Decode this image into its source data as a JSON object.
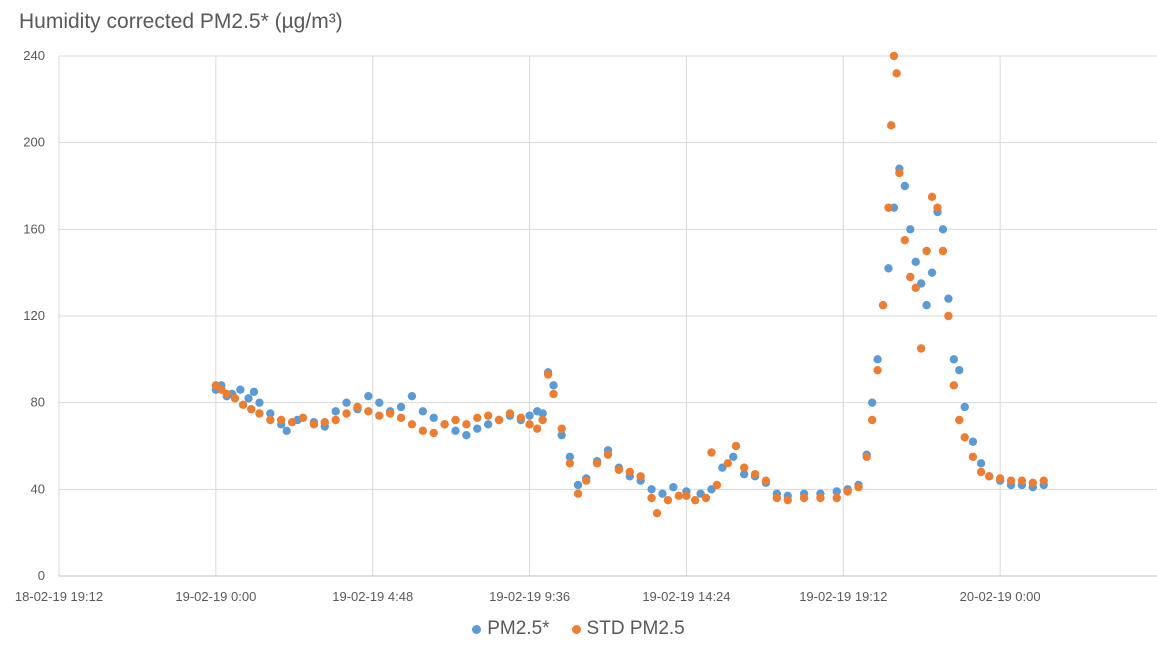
{
  "chart_data": {
    "type": "scatter",
    "title": "Humidity corrected PM2.5* (µg/m³)",
    "xlabel": "",
    "ylabel": "",
    "x_axis": {
      "type": "datetime",
      "min": "2019-02-18T19:12",
      "max": "2019-02-20T04:48",
      "ticks": [
        "2019-02-18T19:12",
        "2019-02-19T00:00",
        "2019-02-19T04:48",
        "2019-02-19T09:36",
        "2019-02-19T14:24",
        "2019-02-19T19:12",
        "2019-02-20T00:00"
      ],
      "tick_labels": [
        "18-02-19 19:12",
        "19-02-19 0:00",
        "19-02-19 4:48",
        "19-02-19 9:36",
        "19-02-19 14:24",
        "19-02-19 19:12",
        "20-02-19 0:00"
      ]
    },
    "ylim": [
      0,
      240
    ],
    "y_ticks": [
      0,
      40,
      80,
      120,
      160,
      200,
      240
    ],
    "grid": true,
    "legend_position": "bottom",
    "series": [
      {
        "name": "PM2.5*",
        "color": "#5b9bd5",
        "points": [
          [
            "2019-02-19T00:00",
            86
          ],
          [
            "2019-02-19T00:10",
            88
          ],
          [
            "2019-02-19T00:20",
            83
          ],
          [
            "2019-02-19T00:30",
            84
          ],
          [
            "2019-02-19T00:45",
            86
          ],
          [
            "2019-02-19T01:00",
            82
          ],
          [
            "2019-02-19T01:10",
            85
          ],
          [
            "2019-02-19T01:20",
            80
          ],
          [
            "2019-02-19T01:40",
            75
          ],
          [
            "2019-02-19T02:00",
            70
          ],
          [
            "2019-02-19T02:10",
            67
          ],
          [
            "2019-02-19T02:30",
            72
          ],
          [
            "2019-02-19T03:00",
            71
          ],
          [
            "2019-02-19T03:20",
            69
          ],
          [
            "2019-02-19T03:40",
            76
          ],
          [
            "2019-02-19T04:00",
            80
          ],
          [
            "2019-02-19T04:20",
            77
          ],
          [
            "2019-02-19T04:40",
            83
          ],
          [
            "2019-02-19T05:00",
            80
          ],
          [
            "2019-02-19T05:20",
            76
          ],
          [
            "2019-02-19T05:40",
            78
          ],
          [
            "2019-02-19T06:00",
            83
          ],
          [
            "2019-02-19T06:20",
            76
          ],
          [
            "2019-02-19T06:40",
            73
          ],
          [
            "2019-02-19T07:00",
            70
          ],
          [
            "2019-02-19T07:20",
            67
          ],
          [
            "2019-02-19T07:40",
            65
          ],
          [
            "2019-02-19T08:00",
            68
          ],
          [
            "2019-02-19T08:20",
            70
          ],
          [
            "2019-02-19T08:40",
            72
          ],
          [
            "2019-02-19T09:00",
            74
          ],
          [
            "2019-02-19T09:20",
            72
          ],
          [
            "2019-02-19T09:36",
            74
          ],
          [
            "2019-02-19T09:50",
            76
          ],
          [
            "2019-02-19T10:00",
            75
          ],
          [
            "2019-02-19T10:10",
            94
          ],
          [
            "2019-02-19T10:20",
            88
          ],
          [
            "2019-02-19T10:35",
            65
          ],
          [
            "2019-02-19T10:50",
            55
          ],
          [
            "2019-02-19T11:05",
            42
          ],
          [
            "2019-02-19T11:20",
            45
          ],
          [
            "2019-02-19T11:40",
            53
          ],
          [
            "2019-02-19T12:00",
            58
          ],
          [
            "2019-02-19T12:20",
            50
          ],
          [
            "2019-02-19T12:40",
            46
          ],
          [
            "2019-02-19T13:00",
            44
          ],
          [
            "2019-02-19T13:20",
            40
          ],
          [
            "2019-02-19T13:40",
            38
          ],
          [
            "2019-02-19T14:00",
            41
          ],
          [
            "2019-02-19T14:24",
            39
          ],
          [
            "2019-02-19T14:50",
            38
          ],
          [
            "2019-02-19T15:10",
            40
          ],
          [
            "2019-02-19T15:30",
            50
          ],
          [
            "2019-02-19T15:50",
            55
          ],
          [
            "2019-02-19T16:10",
            47
          ],
          [
            "2019-02-19T16:30",
            46
          ],
          [
            "2019-02-19T16:50",
            43
          ],
          [
            "2019-02-19T17:10",
            38
          ],
          [
            "2019-02-19T17:30",
            37
          ],
          [
            "2019-02-19T18:00",
            38
          ],
          [
            "2019-02-19T18:30",
            38
          ],
          [
            "2019-02-19T19:00",
            39
          ],
          [
            "2019-02-19T19:20",
            40
          ],
          [
            "2019-02-19T19:40",
            42
          ],
          [
            "2019-02-19T19:55",
            56
          ],
          [
            "2019-02-19T20:05",
            80
          ],
          [
            "2019-02-19T20:15",
            100
          ],
          [
            "2019-02-19T20:25",
            125
          ],
          [
            "2019-02-19T20:35",
            142
          ],
          [
            "2019-02-19T20:45",
            170
          ],
          [
            "2019-02-19T20:55",
            188
          ],
          [
            "2019-02-19T21:05",
            180
          ],
          [
            "2019-02-19T21:15",
            160
          ],
          [
            "2019-02-19T21:25",
            145
          ],
          [
            "2019-02-19T21:35",
            135
          ],
          [
            "2019-02-19T21:45",
            125
          ],
          [
            "2019-02-19T21:55",
            140
          ],
          [
            "2019-02-19T22:05",
            168
          ],
          [
            "2019-02-19T22:15",
            160
          ],
          [
            "2019-02-19T22:25",
            128
          ],
          [
            "2019-02-19T22:35",
            100
          ],
          [
            "2019-02-19T22:45",
            95
          ],
          [
            "2019-02-19T22:55",
            78
          ],
          [
            "2019-02-19T23:10",
            62
          ],
          [
            "2019-02-19T23:25",
            52
          ],
          [
            "2019-02-19T23:40",
            46
          ],
          [
            "2019-02-20T00:00",
            44
          ],
          [
            "2019-02-20T00:20",
            42
          ],
          [
            "2019-02-20T00:40",
            42
          ],
          [
            "2019-02-20T01:00",
            41
          ],
          [
            "2019-02-20T01:20",
            42
          ]
        ]
      },
      {
        "name": "STD PM2.5",
        "color": "#ed7d31",
        "points": [
          [
            "2019-02-19T00:00",
            88
          ],
          [
            "2019-02-19T00:10",
            86
          ],
          [
            "2019-02-19T00:20",
            84
          ],
          [
            "2019-02-19T00:35",
            82
          ],
          [
            "2019-02-19T00:50",
            79
          ],
          [
            "2019-02-19T01:05",
            77
          ],
          [
            "2019-02-19T01:20",
            75
          ],
          [
            "2019-02-19T01:40",
            72
          ],
          [
            "2019-02-19T02:00",
            72
          ],
          [
            "2019-02-19T02:20",
            71
          ],
          [
            "2019-02-19T02:40",
            73
          ],
          [
            "2019-02-19T03:00",
            70
          ],
          [
            "2019-02-19T03:20",
            71
          ],
          [
            "2019-02-19T03:40",
            72
          ],
          [
            "2019-02-19T04:00",
            75
          ],
          [
            "2019-02-19T04:20",
            78
          ],
          [
            "2019-02-19T04:40",
            76
          ],
          [
            "2019-02-19T05:00",
            74
          ],
          [
            "2019-02-19T05:20",
            75
          ],
          [
            "2019-02-19T05:40",
            73
          ],
          [
            "2019-02-19T06:00",
            70
          ],
          [
            "2019-02-19T06:20",
            67
          ],
          [
            "2019-02-19T06:40",
            66
          ],
          [
            "2019-02-19T07:00",
            70
          ],
          [
            "2019-02-19T07:20",
            72
          ],
          [
            "2019-02-19T07:40",
            70
          ],
          [
            "2019-02-19T08:00",
            73
          ],
          [
            "2019-02-19T08:20",
            74
          ],
          [
            "2019-02-19T08:40",
            72
          ],
          [
            "2019-02-19T09:00",
            75
          ],
          [
            "2019-02-19T09:20",
            73
          ],
          [
            "2019-02-19T09:36",
            70
          ],
          [
            "2019-02-19T09:50",
            68
          ],
          [
            "2019-02-19T10:00",
            72
          ],
          [
            "2019-02-19T10:10",
            93
          ],
          [
            "2019-02-19T10:20",
            84
          ],
          [
            "2019-02-19T10:35",
            68
          ],
          [
            "2019-02-19T10:50",
            52
          ],
          [
            "2019-02-19T11:05",
            38
          ],
          [
            "2019-02-19T11:20",
            44
          ],
          [
            "2019-02-19T11:40",
            52
          ],
          [
            "2019-02-19T12:00",
            56
          ],
          [
            "2019-02-19T12:20",
            49
          ],
          [
            "2019-02-19T12:40",
            48
          ],
          [
            "2019-02-19T13:00",
            46
          ],
          [
            "2019-02-19T13:20",
            36
          ],
          [
            "2019-02-19T13:30",
            29
          ],
          [
            "2019-02-19T13:50",
            35
          ],
          [
            "2019-02-19T14:10",
            37
          ],
          [
            "2019-02-19T14:24",
            37
          ],
          [
            "2019-02-19T14:40",
            35
          ],
          [
            "2019-02-19T15:00",
            36
          ],
          [
            "2019-02-19T15:10",
            57
          ],
          [
            "2019-02-19T15:20",
            42
          ],
          [
            "2019-02-19T15:40",
            52
          ],
          [
            "2019-02-19T15:55",
            60
          ],
          [
            "2019-02-19T16:10",
            50
          ],
          [
            "2019-02-19T16:30",
            47
          ],
          [
            "2019-02-19T16:50",
            44
          ],
          [
            "2019-02-19T17:10",
            36
          ],
          [
            "2019-02-19T17:30",
            35
          ],
          [
            "2019-02-19T18:00",
            36
          ],
          [
            "2019-02-19T18:30",
            36
          ],
          [
            "2019-02-19T19:00",
            36
          ],
          [
            "2019-02-19T19:20",
            39
          ],
          [
            "2019-02-19T19:40",
            41
          ],
          [
            "2019-02-19T19:55",
            55
          ],
          [
            "2019-02-19T20:05",
            72
          ],
          [
            "2019-02-19T20:15",
            95
          ],
          [
            "2019-02-19T20:25",
            125
          ],
          [
            "2019-02-19T20:35",
            170
          ],
          [
            "2019-02-19T20:40",
            208
          ],
          [
            "2019-02-19T20:45",
            240
          ],
          [
            "2019-02-19T20:50",
            232
          ],
          [
            "2019-02-19T20:55",
            186
          ],
          [
            "2019-02-19T21:05",
            155
          ],
          [
            "2019-02-19T21:15",
            138
          ],
          [
            "2019-02-19T21:25",
            133
          ],
          [
            "2019-02-19T21:35",
            105
          ],
          [
            "2019-02-19T21:45",
            150
          ],
          [
            "2019-02-19T21:55",
            175
          ],
          [
            "2019-02-19T22:05",
            170
          ],
          [
            "2019-02-19T22:15",
            150
          ],
          [
            "2019-02-19T22:25",
            120
          ],
          [
            "2019-02-19T22:35",
            88
          ],
          [
            "2019-02-19T22:45",
            72
          ],
          [
            "2019-02-19T22:55",
            64
          ],
          [
            "2019-02-19T23:10",
            55
          ],
          [
            "2019-02-19T23:25",
            48
          ],
          [
            "2019-02-19T23:40",
            46
          ],
          [
            "2019-02-20T00:00",
            45
          ],
          [
            "2019-02-20T00:20",
            44
          ],
          [
            "2019-02-20T00:40",
            44
          ],
          [
            "2019-02-20T01:00",
            43
          ],
          [
            "2019-02-20T01:20",
            44
          ]
        ]
      }
    ]
  }
}
